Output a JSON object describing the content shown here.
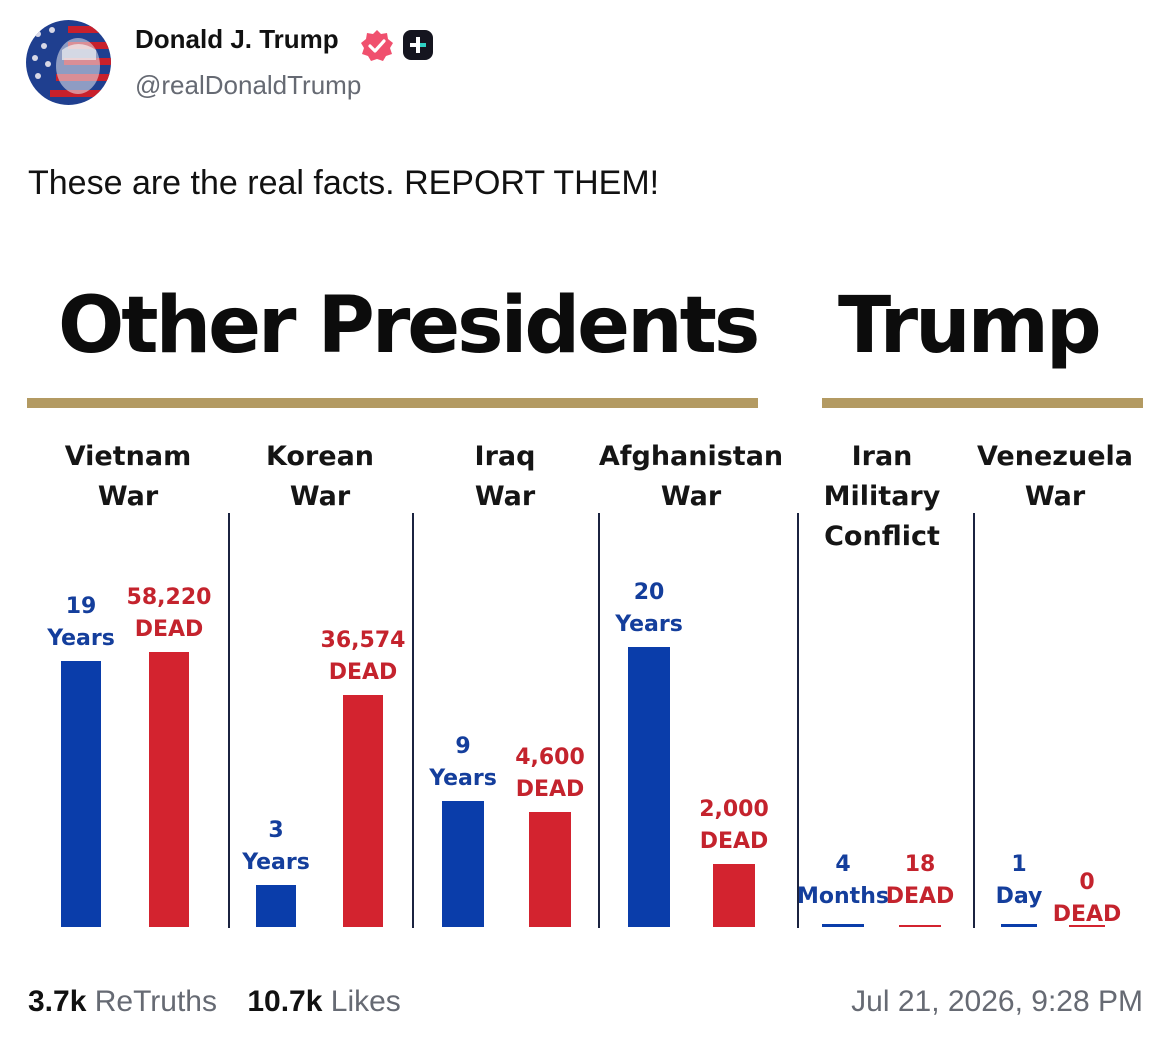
{
  "post": {
    "author_name": "Donald J. Trump",
    "author_handle": "@realDonaldTrump",
    "text": "These are the real facts. REPORT THEM!",
    "retruths_count": "3.7k",
    "retruths_label": "ReTruths",
    "likes_count": "10.7k",
    "likes_label": "Likes",
    "timestamp": "Jul 21, 2026, 9:28 PM",
    "icons": [
      "avatar",
      "verified-badge-icon",
      "plus-badge-icon"
    ]
  },
  "infographic": {
    "group_left": "Other Presidents",
    "group_right": "Trump",
    "colors": {
      "years": "#0a3daa",
      "dead": "#d3232f",
      "rule": "#b39a62"
    }
  },
  "chart_data": {
    "type": "bar",
    "categories": [
      "Vietnam War",
      "Korean War",
      "Iraq War",
      "Afghanistan War",
      "Iran Military Conflict",
      "Venezuela War"
    ],
    "items": [
      {
        "name_lines": [
          "Vietnam",
          "War"
        ],
        "duration_value": "19",
        "duration_unit": "Years",
        "dead_value": "58,220",
        "dead_unit": "DEAD"
      },
      {
        "name_lines": [
          "Korean",
          "War"
        ],
        "duration_value": "3",
        "duration_unit": "Years",
        "dead_value": "36,574",
        "dead_unit": "DEAD"
      },
      {
        "name_lines": [
          "Iraq",
          "War"
        ],
        "duration_value": "9",
        "duration_unit": "Years",
        "dead_value": "4,600",
        "dead_unit": "DEAD"
      },
      {
        "name_lines": [
          "Afghanistan",
          "War"
        ],
        "duration_value": "20",
        "duration_unit": "Years",
        "dead_value": "2,000",
        "dead_unit": "DEAD"
      },
      {
        "name_lines": [
          "Iran",
          "Military",
          "Conflict"
        ],
        "duration_value": "4",
        "duration_unit": "Months",
        "dead_value": "18",
        "dead_unit": "DEAD"
      },
      {
        "name_lines": [
          "Venezuela",
          "War"
        ],
        "duration_value": "1",
        "duration_unit": "Day",
        "dead_value": "0",
        "dead_unit": "DEAD"
      }
    ],
    "series": [
      {
        "name": "Years",
        "values": [
          19,
          3,
          9,
          20,
          0.33,
          0.003
        ]
      },
      {
        "name": "DEAD",
        "values": [
          58220,
          36574,
          4600,
          2000,
          18,
          0
        ]
      }
    ]
  }
}
